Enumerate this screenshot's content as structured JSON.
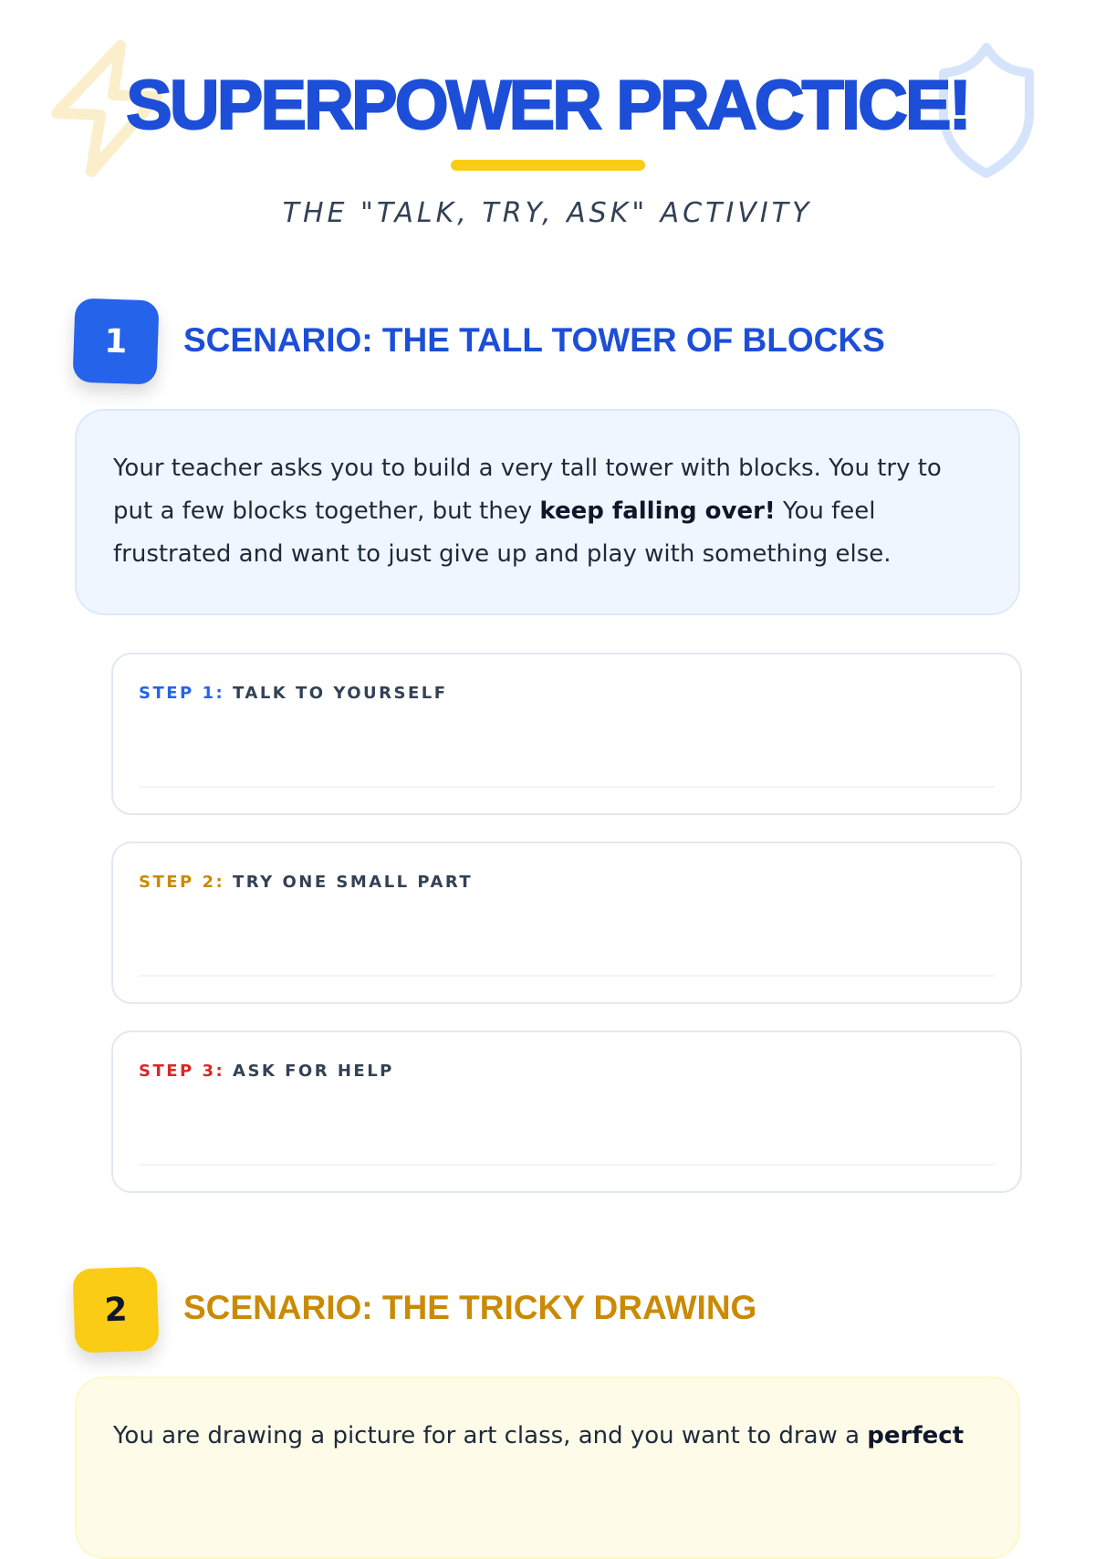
{
  "header": {
    "title": "SUPERPOWER PRACTICE!",
    "subtitle": "THE \"TALK, TRY, ASK\" ACTIVITY",
    "decor_icons": [
      "lightning-bolt-icon",
      "shield-icon"
    ]
  },
  "colors": {
    "blue": "#1d4ed8",
    "yellow": "#facc15",
    "gold": "#ca8a04",
    "red": "#dc2626"
  },
  "scenarios": [
    {
      "number": "1",
      "title": "SCENARIO: THE TALL TOWER OF BLOCKS",
      "text_before": "Your teacher asks you to build a very tall tower with blocks. You try to put a few blocks together, but they ",
      "text_bold": "keep falling over!",
      "text_after": " You feel frustrated and want to just give up and play with something else.",
      "steps": [
        {
          "prefix": "STEP 1:",
          "label": "TALK TO YOURSELF",
          "color": "#2563eb"
        },
        {
          "prefix": "STEP 2:",
          "label": "TRY ONE SMALL PART",
          "color": "#ca8a04"
        },
        {
          "prefix": "STEP 3:",
          "label": "ASK FOR HELP",
          "color": "#dc2626"
        }
      ]
    },
    {
      "number": "2",
      "title": "SCENARIO: THE TRICKY DRAWING",
      "text_before": "You are drawing a picture for art class, and you want to draw a ",
      "text_bold": "perfect"
    }
  ]
}
